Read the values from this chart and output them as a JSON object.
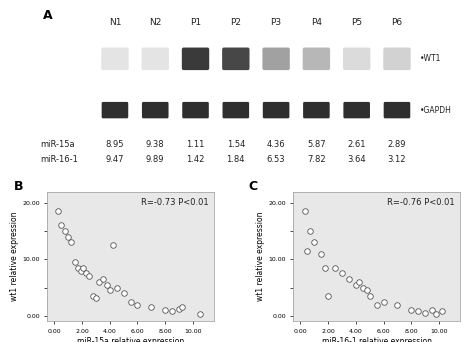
{
  "panel_a_label": "A",
  "panel_b_label": "B",
  "panel_c_label": "C",
  "sample_labels": [
    "N1",
    "N2",
    "P1",
    "P2",
    "P3",
    "P4",
    "P5",
    "P6"
  ],
  "mir15a_values": [
    8.95,
    9.38,
    1.11,
    1.54,
    4.36,
    5.87,
    2.61,
    2.89
  ],
  "mir161_values": [
    9.47,
    9.89,
    1.42,
    1.84,
    6.53,
    7.82,
    3.64,
    3.12
  ],
  "wt1_label": "WT1",
  "gapdh_label": "GAPDH",
  "mir15a_label": "miR-15a",
  "mir161_label": "miR-16-1",
  "bg_color": "#e8e8e8",
  "scatter_facecolor": "white",
  "scatter_edgecolor": "#555555",
  "curve_color": "#444444",
  "r_text_B": "R=-0.73 ",
  "p_text_B": "P<0.01",
  "r_text_C": "R=-0.76 ",
  "p_text_C": "P<0.01",
  "xlabel_B": "miR-15a relative expression",
  "xlabel_C": "miR-16-1 relative expression",
  "ylabel_BC": "wt1 relative expression",
  "xlim": [
    -0.5,
    11.5
  ],
  "ylim": [
    -1.0,
    22
  ],
  "xticks": [
    0,
    2,
    4,
    6,
    8,
    10
  ],
  "yticks": [
    0,
    5,
    10,
    15,
    20
  ],
  "tick_labels_x": [
    "0.00",
    "2.00",
    "4.00",
    "6.00",
    "8.00",
    "10.00"
  ],
  "tick_labels_y": [
    "0.00",
    "",
    "10.00",
    "",
    "20.00"
  ],
  "wt1_intensities": [
    0.12,
    0.12,
    0.88,
    0.82,
    0.42,
    0.32,
    0.16,
    0.2
  ],
  "scatter_B_x": [
    0.3,
    0.5,
    0.8,
    1.0,
    1.2,
    1.5,
    1.7,
    1.9,
    2.1,
    2.3,
    2.5,
    2.8,
    3.0,
    3.2,
    3.5,
    3.8,
    4.0,
    4.2,
    4.5,
    5.0,
    5.5,
    6.0,
    7.0,
    8.0,
    8.5,
    9.0,
    9.2,
    10.5
  ],
  "scatter_B_y": [
    18.5,
    16.0,
    15.0,
    14.0,
    13.0,
    9.5,
    8.5,
    8.0,
    8.5,
    7.5,
    7.0,
    3.5,
    3.2,
    6.0,
    6.5,
    5.5,
    4.5,
    12.5,
    5.0,
    4.0,
    2.5,
    2.0,
    1.5,
    1.0,
    0.8,
    1.2,
    1.5,
    0.3
  ],
  "scatter_C_x": [
    0.3,
    0.5,
    0.7,
    1.0,
    1.5,
    1.8,
    2.0,
    2.5,
    3.0,
    3.5,
    4.0,
    4.2,
    4.5,
    4.8,
    5.0,
    5.5,
    6.0,
    7.0,
    8.0,
    8.5,
    9.0,
    9.5,
    9.8,
    10.2
  ],
  "scatter_C_y": [
    18.5,
    11.5,
    15.0,
    13.0,
    11.0,
    8.5,
    3.5,
    8.5,
    7.5,
    6.5,
    5.5,
    6.0,
    5.0,
    4.5,
    3.5,
    2.0,
    2.5,
    2.0,
    1.0,
    0.8,
    0.5,
    1.0,
    0.3,
    0.8
  ]
}
